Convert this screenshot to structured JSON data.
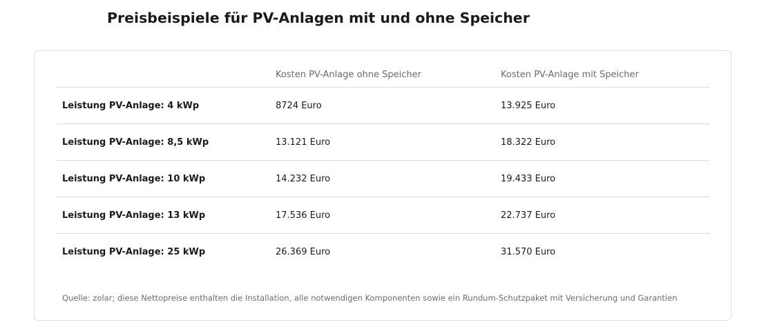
{
  "page": {
    "title": "Preisbeispiele für PV-Anlagen mit und ohne Speicher"
  },
  "table": {
    "headers": [
      "",
      "Kosten PV-Anlage ohne Speicher",
      "Kosten PV-Anlage mit Speicher"
    ],
    "rows": [
      {
        "label": "Leistung PV-Anlage: 4 kWp",
        "ohne_speicher": "8724 Euro",
        "mit_speicher": "13.925 Euro"
      },
      {
        "label": "Leistung PV-Anlage: 8,5 kWp",
        "ohne_speicher": "13.121 Euro",
        "mit_speicher": "18.322 Euro"
      },
      {
        "label": "Leistung PV-Anlage: 10 kWp",
        "ohne_speicher": "14.232 Euro",
        "mit_speicher": "19.433 Euro"
      },
      {
        "label": "Leistung PV-Anlage: 13 kWp",
        "ohne_speicher": "17.536 Euro",
        "mit_speicher": "22.737 Euro"
      },
      {
        "label": "Leistung PV-Anlage: 25 kWp",
        "ohne_speicher": "26.369 Euro",
        "mit_speicher": "31.570 Euro"
      }
    ],
    "source": "Quelle: zolar; diese Nettopreise enthalten die Installation, alle notwendigen Komponenten sowie ein Rundum-Schutzpaket mit Versicherung und Garantien"
  },
  "colors": {
    "text": "#1a1a1a",
    "muted_text": "#6b6b6b",
    "divider": "#dcdcdc",
    "card_border": "#dedede",
    "background": "#ffffff"
  }
}
